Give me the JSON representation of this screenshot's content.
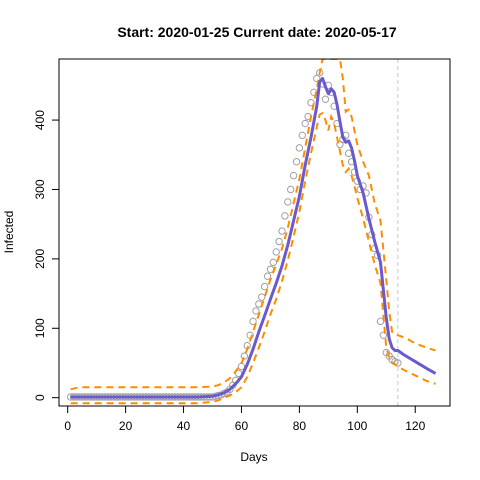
{
  "chart_data": {
    "type": "line",
    "title": "Start:  2020-01-25   Current date:  2020-05-17",
    "xlabel": "Days",
    "ylabel": "Infected",
    "xlim": [
      -3,
      132
    ],
    "ylim": [
      -12,
      488
    ],
    "xticks": [
      0,
      20,
      40,
      60,
      80,
      100,
      120
    ],
    "yticks": [
      0,
      100,
      200,
      300,
      400
    ],
    "current_day": 114,
    "colors": {
      "fit": "#6a5acd",
      "band": "#ff8c00",
      "observed": "#a0a0a0",
      "current_marker": "#c8c8c8"
    },
    "observed": {
      "name": "",
      "x": [
        1,
        2,
        3,
        4,
        5,
        6,
        7,
        8,
        9,
        10,
        11,
        12,
        13,
        14,
        15,
        16,
        17,
        18,
        19,
        20,
        21,
        22,
        23,
        24,
        25,
        26,
        27,
        28,
        29,
        30,
        31,
        32,
        33,
        34,
        35,
        36,
        37,
        38,
        39,
        40,
        41,
        42,
        43,
        44,
        45,
        46,
        47,
        48,
        49,
        50,
        51,
        52,
        53,
        54,
        55,
        56,
        57,
        58,
        59,
        60,
        61,
        62,
        63,
        64,
        65,
        66,
        67,
        68,
        69,
        70,
        71,
        72,
        73,
        74,
        75,
        76,
        77,
        78,
        79,
        80,
        81,
        82,
        83,
        84,
        85,
        86,
        87,
        88,
        89,
        90,
        91,
        92,
        93,
        94,
        95,
        96,
        97,
        98,
        99,
        100,
        101,
        102,
        103,
        104,
        105,
        106,
        107,
        108,
        109,
        110,
        111,
        112,
        113,
        114
      ],
      "y": [
        1,
        1,
        1,
        1,
        1,
        1,
        1,
        1,
        1,
        1,
        1,
        1,
        1,
        1,
        1,
        1,
        1,
        1,
        1,
        1,
        1,
        1,
        1,
        1,
        1,
        1,
        1,
        1,
        1,
        1,
        1,
        1,
        1,
        1,
        1,
        1,
        1,
        1,
        1,
        1,
        1,
        1,
        1,
        1,
        1,
        1,
        1,
        1,
        1,
        1,
        2,
        3,
        4,
        6,
        8,
        12,
        18,
        25,
        35,
        45,
        60,
        75,
        90,
        110,
        125,
        135,
        145,
        160,
        175,
        185,
        195,
        210,
        225,
        240,
        262,
        282,
        300,
        320,
        340,
        360,
        378,
        395,
        405,
        425,
        440,
        460,
        468,
        452,
        430,
        450,
        440,
        420,
        395,
        365,
        372,
        378,
        352,
        340,
        325,
        312,
        300,
        305,
        295,
        260,
        235,
        215,
        205,
        110,
        90,
        65,
        60,
        55,
        52,
        50
      ]
    },
    "fit": {
      "name": "",
      "x": [
        1,
        10,
        20,
        30,
        40,
        45,
        50,
        52,
        54,
        56,
        58,
        60,
        62,
        64,
        66,
        68,
        70,
        72,
        74,
        76,
        78,
        80,
        82,
        84,
        86,
        87,
        88,
        89,
        90,
        91,
        92,
        93,
        94,
        95,
        96,
        97,
        98,
        99,
        100,
        102,
        104,
        106,
        108,
        110,
        111,
        112,
        113,
        114,
        116,
        118,
        120,
        122,
        124,
        127
      ],
      "y": [
        1,
        1,
        1,
        1,
        1,
        1,
        2,
        4,
        7,
        12,
        20,
        30,
        48,
        70,
        95,
        118,
        142,
        165,
        190,
        220,
        255,
        290,
        335,
        375,
        420,
        455,
        460,
        448,
        438,
        445,
        440,
        422,
        398,
        375,
        368,
        370,
        360,
        342,
        320,
        295,
        258,
        225,
        195,
        115,
        85,
        72,
        68,
        68,
        62,
        57,
        52,
        47,
        42,
        35
      ]
    },
    "upper": {
      "name": "",
      "x": [
        1,
        4,
        10,
        20,
        30,
        40,
        45,
        50,
        52,
        54,
        56,
        58,
        60,
        62,
        64,
        66,
        68,
        70,
        72,
        74,
        76,
        78,
        80,
        82,
        84,
        86,
        87,
        88,
        89,
        90,
        91,
        92,
        93,
        94,
        95,
        96,
        97,
        98,
        99,
        100,
        102,
        104,
        106,
        108,
        110,
        111,
        112,
        113,
        114,
        116,
        118,
        120,
        122,
        124,
        127
      ],
      "y": [
        12,
        15,
        15,
        15,
        15,
        15,
        15,
        16,
        18,
        22,
        28,
        38,
        50,
        70,
        95,
        120,
        145,
        170,
        192,
        215,
        245,
        280,
        315,
        360,
        405,
        445,
        468,
        488,
        488,
        488,
        488,
        488,
        488,
        488,
        460,
        412,
        415,
        405,
        385,
        365,
        340,
        320,
        280,
        255,
        170,
        125,
        95,
        90,
        90,
        87,
        83,
        78,
        75,
        72,
        68
      ]
    },
    "lower": {
      "name": "",
      "x": [
        1,
        4,
        10,
        20,
        30,
        40,
        45,
        50,
        52,
        54,
        56,
        58,
        60,
        62,
        64,
        66,
        68,
        70,
        72,
        74,
        76,
        78,
        80,
        82,
        84,
        86,
        87,
        88,
        89,
        90,
        91,
        92,
        93,
        94,
        95,
        96,
        97,
        98,
        99,
        100,
        102,
        104,
        106,
        108,
        110,
        111,
        112,
        113,
        114,
        116,
        118,
        120,
        122,
        124,
        127
      ],
      "y": [
        -8,
        -8,
        -8,
        -8,
        -8,
        -8,
        -8,
        -6,
        -4,
        0,
        3,
        8,
        15,
        30,
        50,
        72,
        95,
        120,
        142,
        168,
        198,
        232,
        268,
        312,
        352,
        390,
        408,
        410,
        400,
        385,
        405,
        395,
        375,
        355,
        335,
        325,
        330,
        320,
        305,
        288,
        258,
        225,
        192,
        165,
        72,
        58,
        50,
        48,
        45,
        40,
        36,
        32,
        28,
        24,
        20
      ]
    }
  }
}
